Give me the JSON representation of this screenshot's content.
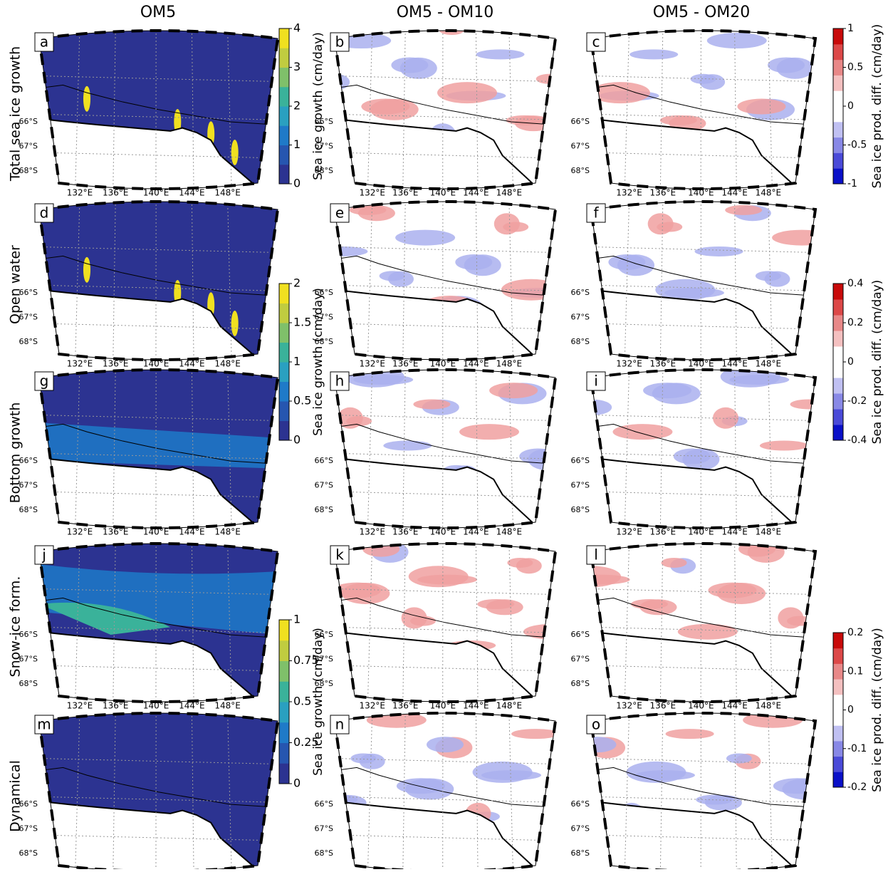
{
  "column_titles": [
    "OM5",
    "OM5 - OM10",
    "OM5 - OM20"
  ],
  "row_labels": [
    "Total sea ice growth",
    "Open water",
    "Bottom growth",
    "Snow-ice form.",
    "Dynamical"
  ],
  "panel_letters": [
    "a",
    "b",
    "c",
    "d",
    "e",
    "f",
    "g",
    "h",
    "i",
    "j",
    "k",
    "l",
    "m",
    "n",
    "o"
  ],
  "lat_labels": [
    "66°S",
    "67°S",
    "68°S"
  ],
  "lon_labels": [
    "132°E",
    "136°E",
    "140°E",
    "144°E",
    "148°E"
  ],
  "colorbars": [
    {
      "label": "Sea ice growth (cm/day)",
      "lim": [
        0,
        4
      ],
      "ticks": [
        0,
        1,
        2,
        3,
        4
      ]
    },
    {
      "label": "Sea ice growth (cm/day)",
      "lim": [
        0,
        2
      ],
      "ticks": [
        0,
        0.5,
        1,
        1.5,
        2
      ]
    },
    {
      "label": "Sea ice growth (cm/day)",
      "lim": [
        0,
        1
      ],
      "ticks": [
        0,
        0.25,
        0.5,
        0.75,
        1
      ]
    },
    {
      "label": "Sea ice prod. diff. (cm/day)",
      "lim": [
        -1,
        1
      ],
      "ticks": [
        -1,
        -0.5,
        0,
        0.5,
        1
      ]
    },
    {
      "label": "Sea ice prod. diff. (cm/day)",
      "lim": [
        -0.4,
        0.4
      ],
      "ticks": [
        -0.4,
        -0.2,
        0,
        0.2,
        0.4
      ]
    },
    {
      "label": "Sea ice prod. diff. (cm/day)",
      "lim": [
        -0.2,
        0.2
      ],
      "ticks": [
        -0.2,
        -0.1,
        0,
        0.1,
        0.2
      ]
    }
  ]
}
